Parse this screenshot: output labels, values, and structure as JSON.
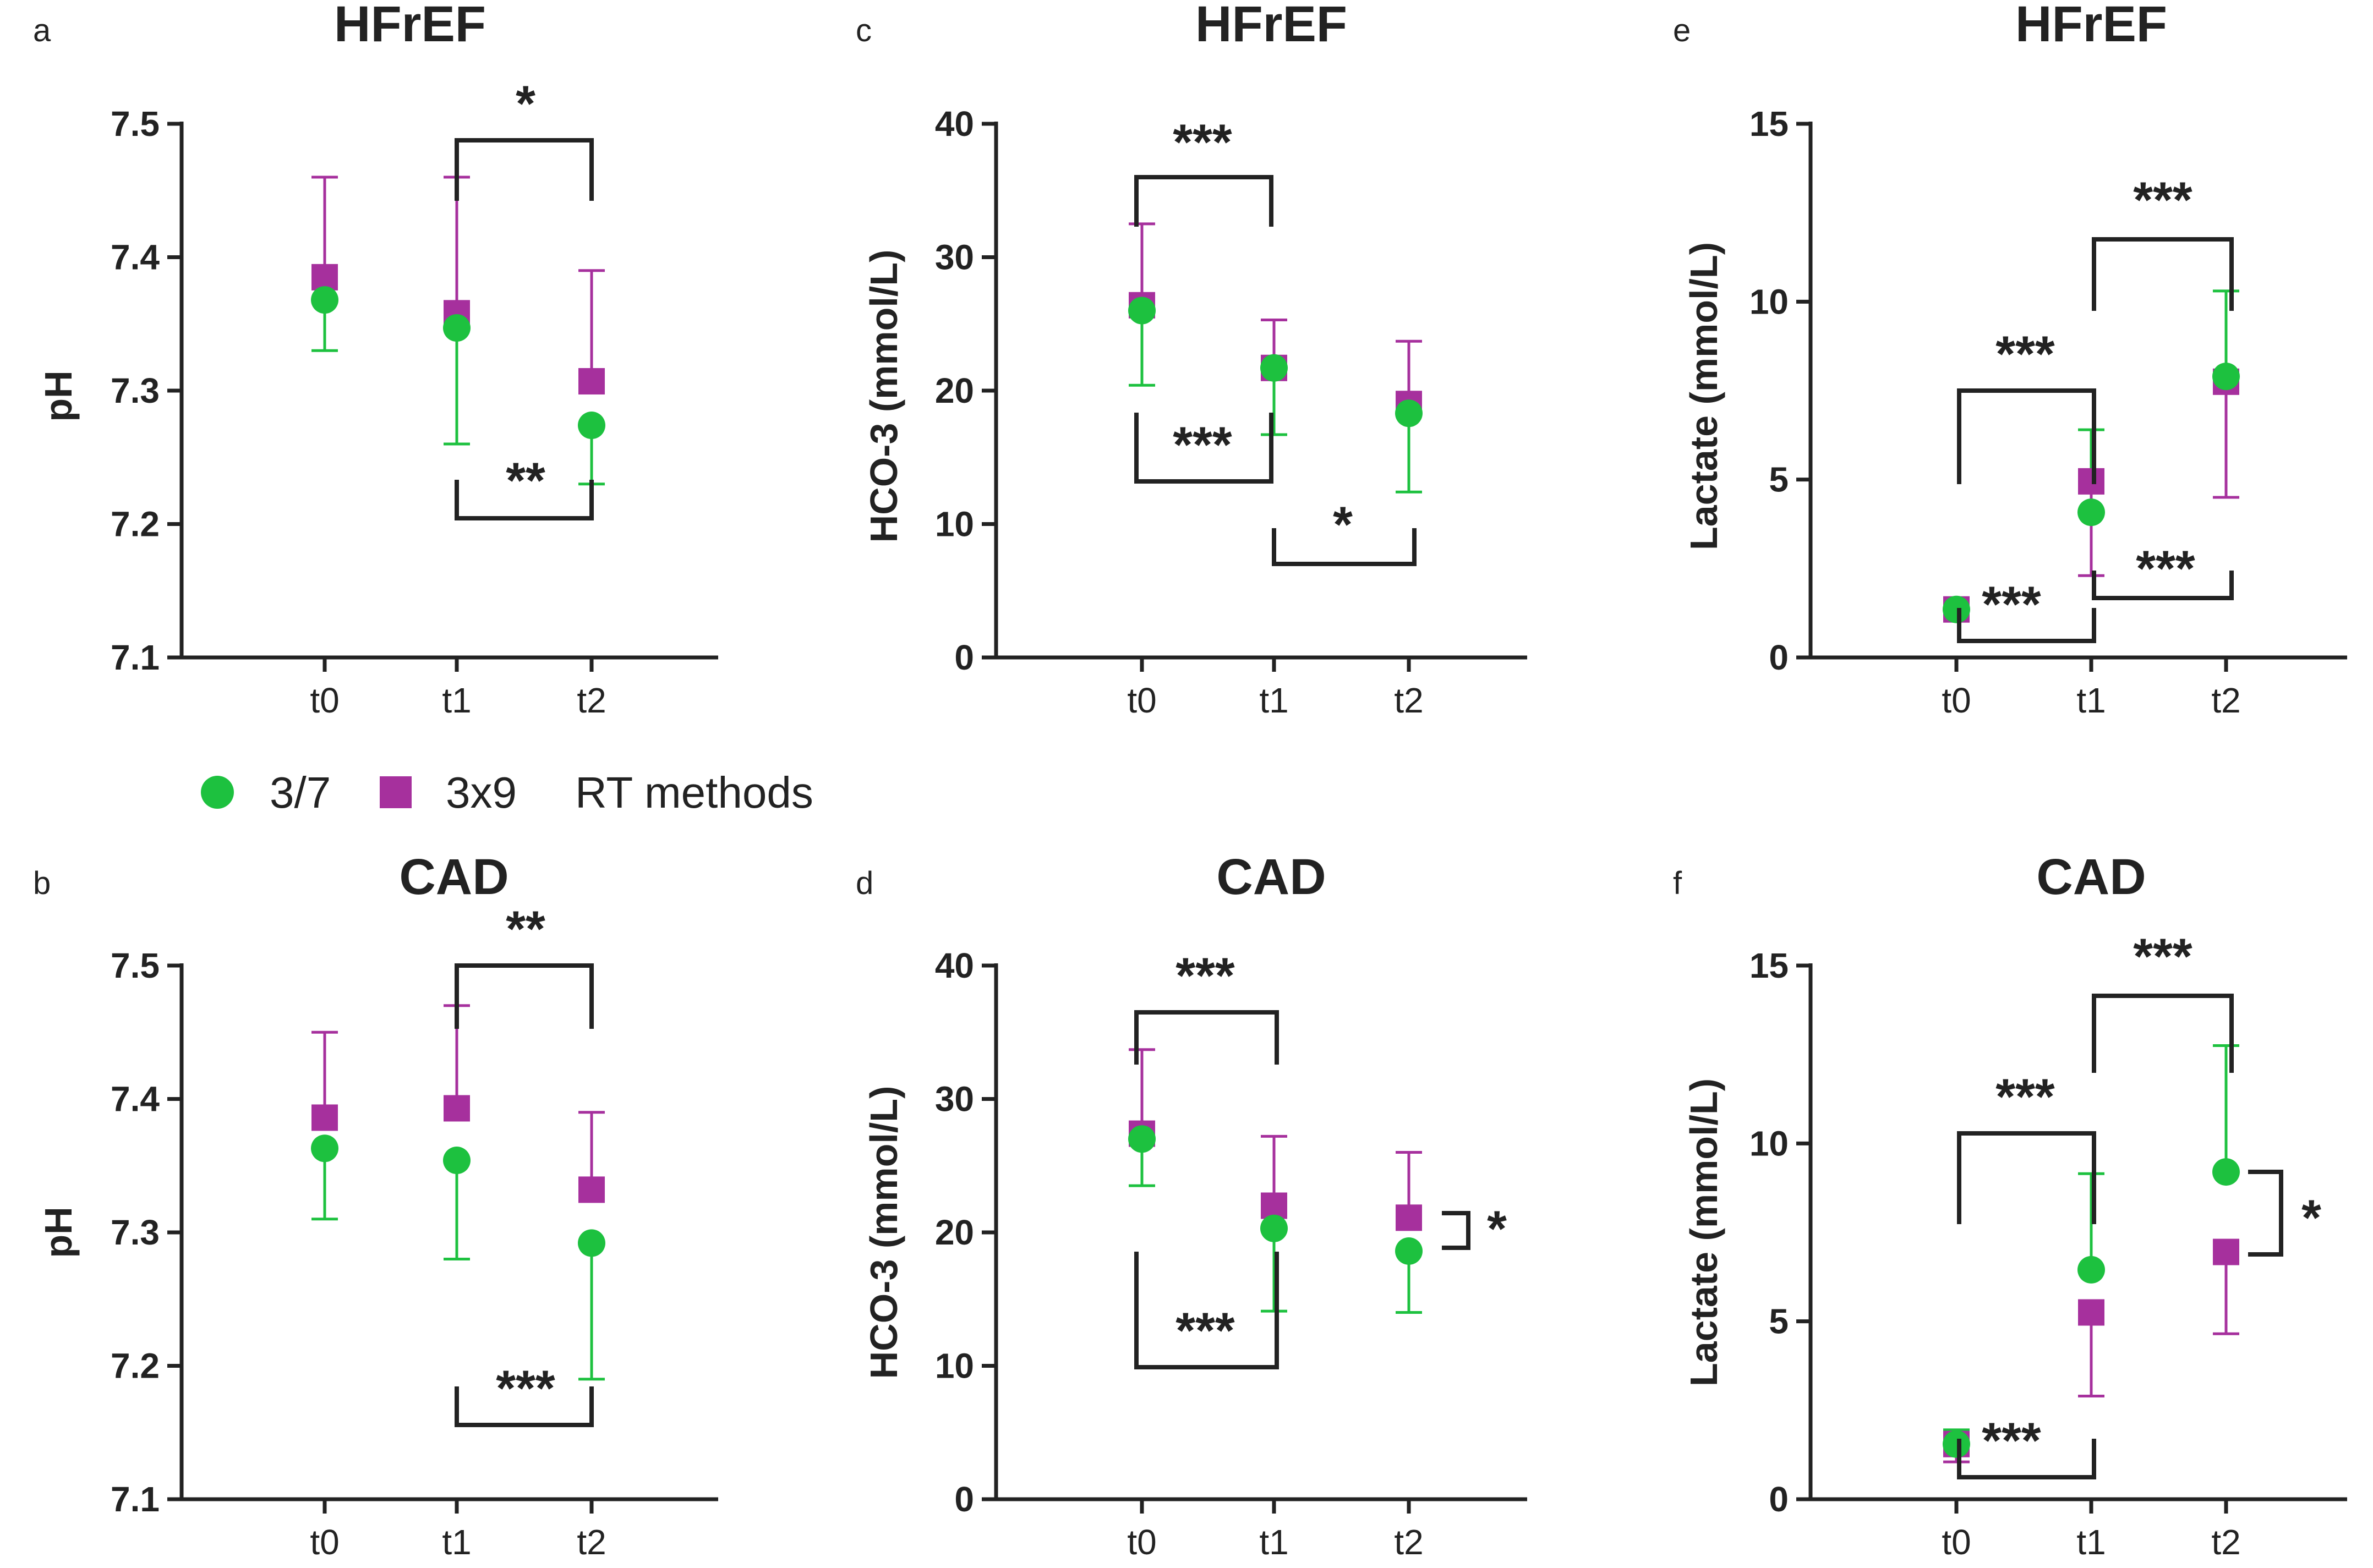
{
  "colors": {
    "green": "#1dc13f",
    "magenta": "#a6309d",
    "axis": "#222222"
  },
  "legend": {
    "items": [
      {
        "label": "3/7",
        "marker": "circle",
        "color": "#1dc13f"
      },
      {
        "label": "3x9",
        "marker": "square",
        "color": "#a6309d"
      }
    ],
    "title": "RT methods"
  },
  "chart_data": [
    {
      "panel": "a",
      "title": "HFrEF",
      "type": "scatter-errorbar",
      "ylabel": "pH",
      "ylim": [
        7.1,
        7.5
      ],
      "yticks": [
        7.1,
        7.2,
        7.3,
        7.4,
        7.5
      ],
      "categories": [
        "t0",
        "t1",
        "t2"
      ],
      "series": [
        {
          "name": "3/7",
          "values": [
            7.368,
            7.347,
            7.274
          ],
          "err_low": [
            7.33,
            7.26,
            7.23
          ],
          "err_high": [
            null,
            null,
            null
          ]
        },
        {
          "name": "3x9",
          "values": [
            7.385,
            7.358,
            7.307
          ],
          "err_low": [
            null,
            null,
            null
          ],
          "err_high": [
            7.46,
            7.46,
            7.39
          ]
        }
      ],
      "significance": [
        {
          "from": "t1",
          "to": "t2",
          "label": "*",
          "position": "above"
        },
        {
          "from": "t1",
          "to": "t2",
          "label": "**",
          "position": "below"
        }
      ]
    },
    {
      "panel": "b",
      "title": "CAD",
      "type": "scatter-errorbar",
      "ylabel": "pH",
      "ylim": [
        7.1,
        7.5
      ],
      "yticks": [
        7.1,
        7.2,
        7.3,
        7.4,
        7.5
      ],
      "categories": [
        "t0",
        "t1",
        "t2"
      ],
      "series": [
        {
          "name": "3/7",
          "values": [
            7.363,
            7.354,
            7.292
          ],
          "err_low": [
            7.31,
            7.28,
            7.19
          ],
          "err_high": [
            null,
            null,
            null
          ]
        },
        {
          "name": "3x9",
          "values": [
            7.386,
            7.393,
            7.332
          ],
          "err_low": [
            null,
            null,
            null
          ],
          "err_high": [
            7.45,
            7.47,
            7.39
          ]
        }
      ],
      "significance": [
        {
          "from": "t1",
          "to": "t2",
          "label": "**",
          "position": "above"
        },
        {
          "from": "t1",
          "to": "t2",
          "label": "***",
          "position": "below"
        }
      ]
    },
    {
      "panel": "c",
      "title": "HFrEF",
      "type": "scatter-errorbar",
      "ylabel": "HCO-3 (mmol/L)",
      "ylim": [
        0,
        40
      ],
      "yticks": [
        0,
        10,
        20,
        30,
        40
      ],
      "categories": [
        "t0",
        "t1",
        "t2"
      ],
      "series": [
        {
          "name": "3/7",
          "values": [
            26.0,
            21.7,
            18.3
          ],
          "err_low": [
            20.4,
            16.7,
            12.4
          ],
          "err_high": [
            null,
            null,
            null
          ]
        },
        {
          "name": "3x9",
          "values": [
            26.4,
            21.7,
            19.0
          ],
          "err_low": [
            null,
            null,
            null
          ],
          "err_high": [
            32.5,
            25.3,
            23.7
          ]
        }
      ],
      "significance": [
        {
          "from": "t0",
          "to": "t1",
          "label": "***",
          "position": "above"
        },
        {
          "from": "t0",
          "to": "t1",
          "label": "***",
          "position": "below"
        },
        {
          "from": "t1",
          "to": "t2",
          "label": "*",
          "position": "below"
        }
      ]
    },
    {
      "panel": "d",
      "title": "CAD",
      "type": "scatter-errorbar",
      "ylabel": "HCO-3 (mmol/L)",
      "ylim": [
        0,
        40
      ],
      "yticks": [
        0,
        10,
        20,
        30,
        40
      ],
      "categories": [
        "t0",
        "t1",
        "t2"
      ],
      "series": [
        {
          "name": "3/7",
          "values": [
            27.0,
            20.3,
            18.6
          ],
          "err_low": [
            23.5,
            14.1,
            14.0
          ],
          "err_high": [
            null,
            null,
            null
          ]
        },
        {
          "name": "3x9",
          "values": [
            27.4,
            22.0,
            21.1
          ],
          "err_low": [
            null,
            null,
            null
          ],
          "err_high": [
            33.7,
            27.2,
            26.0
          ]
        }
      ],
      "significance": [
        {
          "from": "t0",
          "to": "t1",
          "label": "***",
          "position": "above"
        },
        {
          "from": "t0",
          "to": "t1",
          "label": "***",
          "position": "below"
        },
        {
          "at": "t2",
          "label": "*",
          "position": "right"
        }
      ]
    },
    {
      "panel": "e",
      "title": "HFrEF",
      "type": "scatter-errorbar",
      "ylabel": "Lactate (mmol/L)",
      "ylim": [
        0,
        15
      ],
      "yticks": [
        0,
        5,
        10,
        15
      ],
      "categories": [
        "t0",
        "t1",
        "t2"
      ],
      "series": [
        {
          "name": "3/7",
          "values": [
            1.35,
            4.08,
            7.9
          ],
          "err_low": [
            null,
            null,
            null
          ],
          "err_high": [
            1.6,
            6.4,
            10.3
          ]
        },
        {
          "name": "3x9",
          "values": [
            1.35,
            4.95,
            7.75
          ],
          "err_low": [
            1.05,
            2.3,
            4.5
          ],
          "err_high": [
            null,
            null,
            null
          ]
        }
      ],
      "significance": [
        {
          "from": "t1",
          "to": "t2",
          "label": "***",
          "position": "above"
        },
        {
          "from": "t0",
          "to": "t1",
          "label": "***",
          "position": "above"
        },
        {
          "from": "t1",
          "to": "t2",
          "label": "***",
          "position": "below"
        },
        {
          "from": "t0",
          "to": "t1",
          "label": "***",
          "position": "below"
        }
      ]
    },
    {
      "panel": "f",
      "title": "CAD",
      "type": "scatter-errorbar",
      "ylabel": "Lactate (mmol/L)",
      "ylim": [
        0,
        15
      ],
      "yticks": [
        0,
        5,
        10,
        15
      ],
      "categories": [
        "t0",
        "t1",
        "t2"
      ],
      "series": [
        {
          "name": "3/7",
          "values": [
            1.55,
            6.45,
            9.2
          ],
          "err_low": [
            null,
            null,
            null
          ],
          "err_high": [
            1.95,
            9.15,
            12.75
          ]
        },
        {
          "name": "3x9",
          "values": [
            1.55,
            5.25,
            6.95
          ],
          "err_low": [
            1.05,
            2.9,
            4.65
          ],
          "err_high": [
            null,
            null,
            null
          ]
        }
      ],
      "significance": [
        {
          "from": "t1",
          "to": "t2",
          "label": "***",
          "position": "above"
        },
        {
          "from": "t0",
          "to": "t1",
          "label": "***",
          "position": "above"
        },
        {
          "from": "t0",
          "to": "t1",
          "label": "***",
          "position": "below"
        },
        {
          "at": "t2",
          "label": "*",
          "position": "right"
        }
      ]
    }
  ]
}
